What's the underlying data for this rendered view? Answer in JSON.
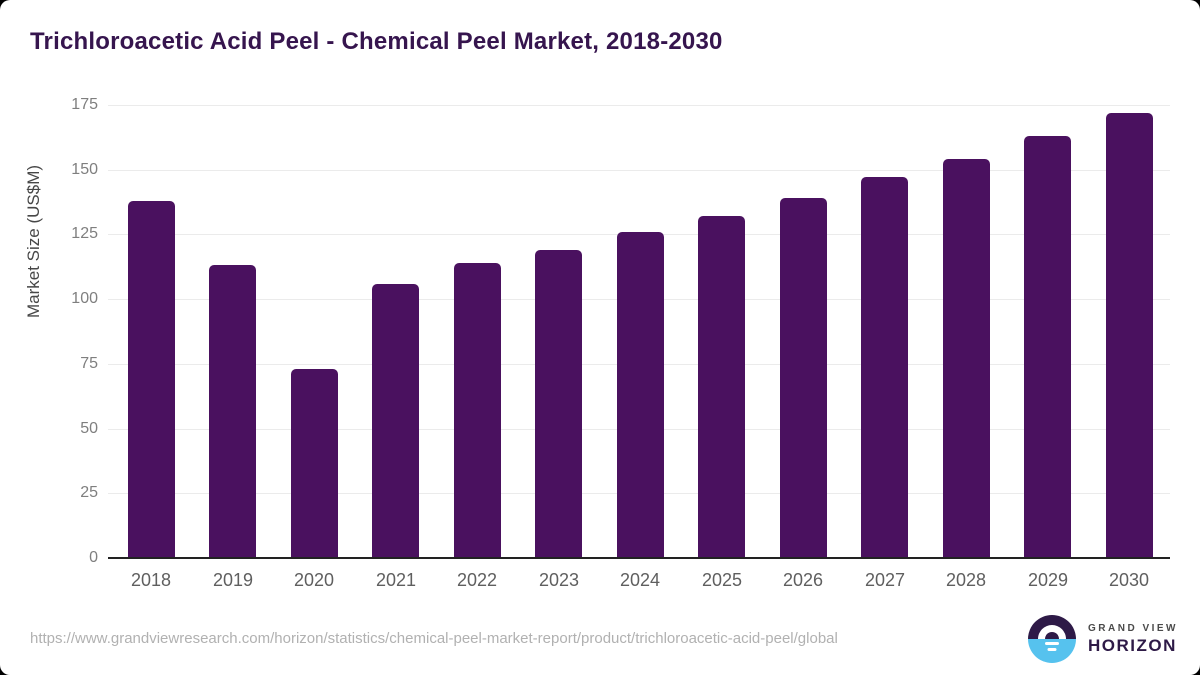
{
  "page": {
    "source_url": "https://www.grandviewresearch.com/horizon/statistics/chemical-peel-market-report/product/trichloroacetic-acid-peel/global"
  },
  "branding": {
    "logo_icon": "sun-over-horizon-logo",
    "line1": "GRAND VIEW",
    "line2": "HORIZON"
  },
  "colors": {
    "bar": "#4a115f",
    "title_text": "#36154e",
    "gridline": "#ebebeb",
    "baseline": "#222222",
    "logo_purple": "#2e1a47",
    "logo_blue": "#56c2ee"
  },
  "chart_data": {
    "type": "bar",
    "title": "Trichloroacetic Acid Peel - Chemical Peel Market, 2018-2030",
    "xlabel": "",
    "ylabel": "Market Size (US$M)",
    "categories": [
      "2018",
      "2019",
      "2020",
      "2021",
      "2022",
      "2023",
      "2024",
      "2025",
      "2026",
      "2027",
      "2028",
      "2029",
      "2030"
    ],
    "values": [
      138,
      113,
      73,
      106,
      114,
      119,
      126,
      132,
      139,
      147,
      154,
      163,
      172
    ],
    "ylim": [
      0,
      175
    ],
    "yticks": [
      0,
      25,
      50,
      75,
      100,
      125,
      150,
      175
    ],
    "grid": "horizontal",
    "legend": "none",
    "bar_color": "#4a115f"
  }
}
